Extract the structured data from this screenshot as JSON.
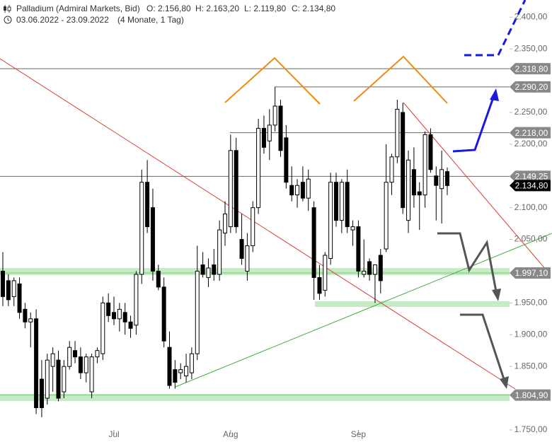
{
  "chart_data": {
    "type": "candlestick",
    "header": {
      "title": "Palladium (Admiral Markets, Bid)",
      "open": "O: 2.156,80",
      "high": "H: 2.163,20",
      "low": "L: 2.119,80",
      "close": "C: 2.134,80",
      "range": "03.06.2022 - 23.09.2022",
      "period": "(4 Monate, 1 Tag)"
    },
    "categories": [
      null,
      null,
      null,
      null,
      null,
      null,
      null,
      null,
      null,
      null,
      null,
      null,
      null,
      null,
      null,
      null,
      null,
      null,
      null,
      null,
      "Jul",
      null,
      null,
      null,
      null,
      null,
      null,
      null,
      null,
      null,
      null,
      null,
      null,
      null,
      null,
      null,
      null,
      null,
      null,
      null,
      null,
      "Aug",
      null,
      null,
      null,
      null,
      null,
      null,
      null,
      null,
      null,
      null,
      null,
      null,
      null,
      null,
      null,
      null,
      null,
      null,
      null,
      null,
      null,
      null,
      "Sep",
      null,
      null,
      null,
      null,
      null,
      null,
      null,
      null,
      null,
      null,
      null,
      null,
      null,
      null,
      null,
      null
    ],
    "open": [
      2000,
      1985,
      1960,
      1980,
      1940,
      1920,
      1925,
      1830,
      1800,
      1850,
      1860,
      1810,
      1850,
      1875,
      1865,
      1840,
      1810,
      1865,
      1870,
      1950,
      1935,
      1925,
      1935,
      1920,
      1915,
      1995,
      2140,
      2100,
      2000,
      1975,
      1880,
      1845,
      1840,
      1835,
      1840,
      1870,
      2010,
      1990,
      2010,
      1995,
      2060,
      2070,
      2190,
      2050,
      2000,
      2040,
      2100,
      2225,
      2205,
      2230,
      2260,
      2210,
      2135,
      2120,
      2140,
      2115,
      2100,
      1990,
      1970,
      2020,
      2140,
      2080,
      2140,
      2065,
      2070,
      1995,
      2015,
      1995,
      2025,
      2035,
      2140,
      2180,
      2250,
      2080,
      2160,
      2125,
      2120,
      2215,
      2150,
      2130,
      2156.8
    ],
    "high": [
      2030,
      1995,
      1990,
      1990,
      1950,
      1935,
      1940,
      1860,
      1870,
      1880,
      1875,
      1860,
      1890,
      1890,
      1880,
      1870,
      1870,
      1880,
      1960,
      1965,
      1960,
      1950,
      1950,
      1930,
      2000,
      2160,
      2175,
      2130,
      2010,
      1990,
      1905,
      1860,
      1855,
      1870,
      1880,
      2040,
      2030,
      2020,
      2035,
      2080,
      2110,
      2215,
      2210,
      2090,
      2060,
      2110,
      2240,
      2245,
      2255,
      2290,
      2270,
      2230,
      2165,
      2145,
      2165,
      2160,
      2110,
      2010,
      2030,
      2155,
      2155,
      2145,
      2160,
      2080,
      2080,
      2050,
      2020,
      2010,
      2035,
      2200,
      2185,
      2270,
      2265,
      2190,
      2195,
      2140,
      2220,
      2225,
      2165,
      2190,
      2163.2
    ],
    "low": [
      1945,
      1945,
      1945,
      1925,
      1910,
      1880,
      1775,
      1770,
      1790,
      1810,
      1795,
      1800,
      1845,
      1855,
      1830,
      1825,
      1800,
      1855,
      1860,
      1920,
      1915,
      1905,
      1900,
      1895,
      1900,
      1980,
      2060,
      1985,
      1970,
      1880,
      1815,
      1815,
      1830,
      1825,
      1830,
      1860,
      1990,
      1975,
      1985,
      1985,
      2040,
      2060,
      2060,
      2010,
      1985,
      2030,
      2090,
      2185,
      2175,
      2220,
      2180,
      2130,
      2110,
      2100,
      2110,
      2095,
      1955,
      1955,
      1960,
      2010,
      2070,
      2060,
      2060,
      2040,
      1990,
      1990,
      1985,
      1950,
      1965,
      2030,
      2120,
      2170,
      2090,
      2060,
      2100,
      2065,
      2100,
      2155,
      2080,
      2075,
      2119.8
    ],
    "close": [
      1960,
      1955,
      1985,
      1935,
      1920,
      1925,
      1785,
      1785,
      1860,
      1870,
      1800,
      1850,
      1880,
      1865,
      1840,
      1865,
      1865,
      1875,
      1950,
      1930,
      1925,
      1940,
      1920,
      1910,
      1995,
      2140,
      2070,
      2000,
      1975,
      1890,
      1820,
      1825,
      1845,
      1850,
      1870,
      2000,
      1995,
      2005,
      1995,
      2065,
      2090,
      2190,
      2070,
      2020,
      2040,
      2100,
      2225,
      2195,
      2230,
      2260,
      2190,
      2140,
      2120,
      2135,
      2115,
      2145,
      1990,
      1965,
      2025,
      2140,
      2080,
      2140,
      2070,
      2070,
      2000,
      2000,
      1995,
      2010,
      1985,
      2140,
      2180,
      2255,
      2100,
      2175,
      2120,
      2120,
      2215,
      2160,
      2135,
      2160,
      2134.8
    ],
    "ylim": [
      1731,
      2427
    ],
    "yticks": [
      {
        "value": 2400,
        "label": "2.400,00"
      },
      {
        "value": 2350,
        "label": "2.350,00"
      },
      {
        "value": 2250,
        "label": "2.250,00"
      },
      {
        "value": 2200,
        "label": "2.200,00"
      },
      {
        "value": 2100,
        "label": "2.100,00"
      },
      {
        "value": 2050,
        "label": "2.050,00"
      },
      {
        "value": 1950,
        "label": "1.950,00"
      },
      {
        "value": 1900,
        "label": "1.900,00"
      },
      {
        "value": 1850,
        "label": "1.850,00"
      },
      {
        "value": 1750,
        "label": "1.750,00"
      }
    ],
    "levels": [
      {
        "value": 2318.8,
        "label": "2.318,80",
        "color": "#888888"
      },
      {
        "value": 2290.2,
        "label": "2.290,20",
        "color": "#888888"
      },
      {
        "value": 2218,
        "label": "2.218,00",
        "color": "#888888"
      },
      {
        "value": 2149.25,
        "label": "2.149,25",
        "color": "#888888"
      },
      {
        "value": 2134.8,
        "label": "2.134,80",
        "color": "#000000"
      },
      {
        "value": 1997.1,
        "label": "1.997,10",
        "color": "#888888"
      },
      {
        "value": 1804.9,
        "label": "1.804,90",
        "color": "#888888"
      }
    ],
    "up_color": "#ffffff",
    "down_color": "#000000"
  }
}
